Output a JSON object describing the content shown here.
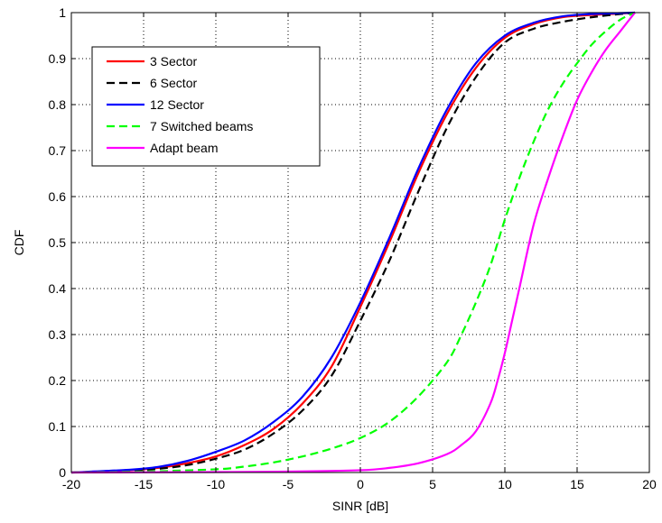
{
  "chart_data": {
    "type": "line",
    "xlabel": "SINR [dB]",
    "ylabel": "CDF",
    "xlim": [
      -20,
      20
    ],
    "ylim": [
      0,
      1
    ],
    "xticks": [
      -20,
      -15,
      -10,
      -5,
      0,
      5,
      10,
      15,
      20
    ],
    "yticks": [
      0,
      0.1,
      0.2,
      0.3,
      0.4,
      0.5,
      0.6,
      0.7,
      0.8,
      0.9,
      1
    ],
    "grid": true,
    "legend_position": "top-left",
    "series": [
      {
        "name": "3 Sector",
        "color": "#ff0000",
        "style": "solid",
        "x": [
          -20,
          -16,
          -14,
          -12,
          -10,
          -8,
          -6,
          -4,
          -2,
          0,
          2,
          4,
          6,
          8,
          10,
          12,
          14,
          16,
          18,
          19
        ],
        "y": [
          0.0,
          0.005,
          0.01,
          0.02,
          0.035,
          0.06,
          0.095,
          0.15,
          0.23,
          0.36,
          0.5,
          0.65,
          0.78,
          0.88,
          0.945,
          0.975,
          0.99,
          0.995,
          0.998,
          1.0
        ]
      },
      {
        "name": "6 Sector",
        "color": "#000000",
        "style": "dashed",
        "x": [
          -20,
          -16,
          -14,
          -12,
          -10,
          -8,
          -6,
          -4,
          -2,
          0,
          2,
          4,
          6,
          8,
          10,
          12,
          14,
          16,
          18,
          19
        ],
        "y": [
          0.0,
          0.004,
          0.008,
          0.016,
          0.03,
          0.05,
          0.085,
          0.135,
          0.21,
          0.33,
          0.46,
          0.61,
          0.75,
          0.86,
          0.935,
          0.965,
          0.98,
          0.99,
          0.997,
          1.0
        ]
      },
      {
        "name": "12 Sector",
        "color": "#0000ff",
        "style": "solid",
        "x": [
          -20,
          -16,
          -14,
          -12,
          -10,
          -8,
          -6,
          -4,
          -2,
          0,
          2,
          4,
          6,
          8,
          10,
          12,
          14,
          16,
          18,
          19
        ],
        "y": [
          0.0,
          0.006,
          0.012,
          0.025,
          0.045,
          0.07,
          0.11,
          0.165,
          0.25,
          0.37,
          0.51,
          0.66,
          0.79,
          0.89,
          0.95,
          0.978,
          0.992,
          0.997,
          0.999,
          1.0
        ]
      },
      {
        "name": "7 Switched beams",
        "color": "#00ff00",
        "style": "dashed",
        "x": [
          -20,
          -15,
          -10,
          -8,
          -6,
          -4,
          -2,
          0,
          2,
          4,
          6,
          7,
          8,
          9,
          10,
          11,
          12,
          13,
          14,
          15,
          16,
          17,
          18,
          19
        ],
        "y": [
          0.0,
          0.002,
          0.007,
          0.013,
          0.022,
          0.035,
          0.052,
          0.075,
          0.11,
          0.165,
          0.24,
          0.3,
          0.37,
          0.45,
          0.55,
          0.64,
          0.72,
          0.79,
          0.845,
          0.89,
          0.93,
          0.96,
          0.985,
          1.0
        ]
      },
      {
        "name": "Adapt beam",
        "color": "#ff00ff",
        "style": "solid",
        "x": [
          -20,
          -10,
          -5,
          0,
          2,
          4,
          6,
          7,
          8,
          9,
          9.5,
          10,
          10.5,
          11,
          12,
          13,
          14,
          15,
          16,
          17,
          18,
          19
        ],
        "y": [
          0.0,
          0.001,
          0.002,
          0.005,
          0.01,
          0.02,
          0.04,
          0.06,
          0.09,
          0.15,
          0.2,
          0.26,
          0.33,
          0.4,
          0.54,
          0.64,
          0.73,
          0.81,
          0.87,
          0.92,
          0.96,
          1.0
        ]
      }
    ]
  }
}
